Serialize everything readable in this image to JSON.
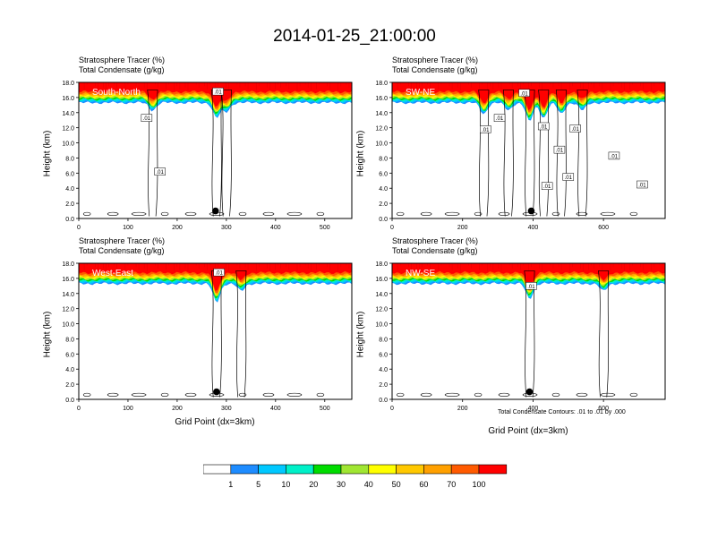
{
  "title": "2014-01-25_21:00:00",
  "panel_title_1": "Stratosphere Tracer   (%)",
  "panel_title_2": "Total Condensate   (g/kg)",
  "y_axis_label": "Height (km)",
  "x_axis_label": "Grid Point (dx=3km)",
  "contour_note": "Total Condensate Contours: .01 to .01 by .000",
  "colors": {
    "levels": [
      "#ffffff",
      "#1e8cff",
      "#00c8ff",
      "#00f0c8",
      "#00dc00",
      "#a0e632",
      "#ffff00",
      "#ffc800",
      "#ffa000",
      "#ff5a00",
      "#ff0000"
    ],
    "marker": "#000000"
  },
  "colorbar": {
    "labels": [
      "1",
      "5",
      "10",
      "20",
      "30",
      "40",
      "50",
      "60",
      "70",
      "100"
    ]
  },
  "chart_data": [
    {
      "type": "heatmap",
      "label": "South-North",
      "xlim": [
        0,
        555
      ],
      "ylim": [
        0,
        18
      ],
      "xticks": [
        0,
        100,
        200,
        300,
        400,
        500
      ],
      "yticks": [
        "0.0",
        "2.0",
        "4.0",
        "6.0",
        "8.0",
        "10.0",
        "12.0",
        "14.0",
        "16.0",
        "18.0"
      ],
      "tracer_base_km": 15.3,
      "dips": [
        {
          "x": 150,
          "depth": 1.0
        },
        {
          "x": 280,
          "depth": 2.0
        },
        {
          "x": 300,
          "depth": 1.2
        }
      ],
      "contour_labels": [
        {
          "x": 138,
          "y": 13.3,
          "text": ".01"
        },
        {
          "x": 165,
          "y": 6.2,
          "text": ".01"
        },
        {
          "x": 283,
          "y": 16.8,
          "text": ".01"
        }
      ],
      "marker": {
        "x": 278,
        "y": 1.0
      }
    },
    {
      "type": "heatmap",
      "label": "SW-NE",
      "xlim": [
        0,
        775
      ],
      "ylim": [
        0,
        18
      ],
      "xticks": [
        0,
        200,
        400,
        600
      ],
      "yticks": [
        "0.0",
        "2.0",
        "4.0",
        "6.0",
        "8.0",
        "10.0",
        "12.0",
        "14.0",
        "16.0",
        "18.0"
      ],
      "tracer_base_km": 15.3,
      "dips": [
        {
          "x": 260,
          "depth": 1.5
        },
        {
          "x": 330,
          "depth": 1.0
        },
        {
          "x": 390,
          "depth": 2.5
        },
        {
          "x": 430,
          "depth": 2.0
        },
        {
          "x": 480,
          "depth": 1.5
        },
        {
          "x": 540,
          "depth": 1.0
        }
      ],
      "contour_labels": [
        {
          "x": 265,
          "y": 11.8,
          "text": ".01"
        },
        {
          "x": 305,
          "y": 13.3,
          "text": ".01"
        },
        {
          "x": 375,
          "y": 16.6,
          "text": ".01"
        },
        {
          "x": 430,
          "y": 12.2,
          "text": ".01"
        },
        {
          "x": 440,
          "y": 4.3,
          "text": ".01"
        },
        {
          "x": 475,
          "y": 9.1,
          "text": ".01"
        },
        {
          "x": 500,
          "y": 5.5,
          "text": ".01"
        },
        {
          "x": 520,
          "y": 11.9,
          "text": ".01"
        },
        {
          "x": 630,
          "y": 8.3,
          "text": ".01"
        },
        {
          "x": 710,
          "y": 4.5,
          "text": ".01"
        }
      ],
      "marker": {
        "x": 395,
        "y": 1.0
      }
    },
    {
      "type": "heatmap",
      "label": "West-East",
      "xlim": [
        0,
        555
      ],
      "ylim": [
        0,
        18
      ],
      "xticks": [
        0,
        100,
        200,
        300,
        400,
        500
      ],
      "yticks": [
        "0.0",
        "2.0",
        "4.0",
        "6.0",
        "8.0",
        "10.0",
        "12.0",
        "14.0",
        "16.0",
        "18.0"
      ],
      "tracer_base_km": 15.3,
      "dips": [
        {
          "x": 280,
          "depth": 2.5
        },
        {
          "x": 330,
          "depth": 1.0
        }
      ],
      "contour_labels": [
        {
          "x": 285,
          "y": 16.8,
          "text": ".01"
        }
      ],
      "marker": {
        "x": 280,
        "y": 1.0
      }
    },
    {
      "type": "heatmap",
      "label": "NW-SE",
      "xlim": [
        0,
        775
      ],
      "ylim": [
        0,
        18
      ],
      "xticks": [
        0,
        200,
        400,
        600
      ],
      "yticks": [
        "0.0",
        "2.0",
        "4.0",
        "6.0",
        "8.0",
        "10.0",
        "12.0",
        "14.0",
        "16.0",
        "18.0"
      ],
      "tracer_base_km": 15.3,
      "dips": [
        {
          "x": 390,
          "depth": 2.0
        },
        {
          "x": 600,
          "depth": 1.0
        }
      ],
      "contour_labels": [
        {
          "x": 395,
          "y": 15.0,
          "text": ".01"
        }
      ],
      "marker": {
        "x": 390,
        "y": 1.0
      }
    }
  ]
}
